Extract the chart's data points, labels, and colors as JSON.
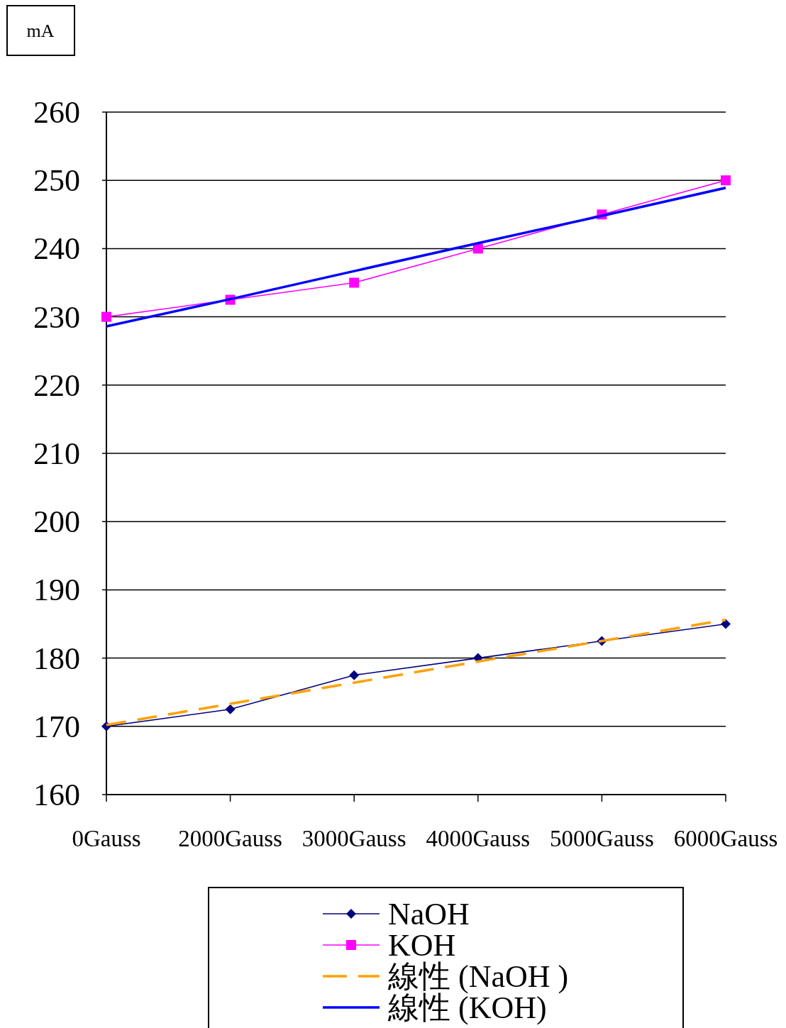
{
  "chart_data": {
    "type": "line",
    "ylabel": "mA",
    "categories": [
      "0Gauss",
      "2000Gauss",
      "3000Gauss",
      "4000Gauss",
      "5000Gauss",
      "6000Gauss"
    ],
    "series": [
      {
        "name": "NaOH",
        "color": "#000080",
        "values": [
          170,
          172.5,
          177.5,
          180,
          182.5,
          185
        ],
        "marker": "diamond",
        "line_style": "solid"
      },
      {
        "name": "KOH",
        "color": "#ff00ff",
        "values": [
          230,
          232.5,
          235,
          240,
          245,
          250
        ],
        "marker": "square",
        "line_style": "solid"
      },
      {
        "name": "線性 (NaOH )",
        "color": "#ffa000",
        "values": [
          170.2,
          173.3,
          176.4,
          179.5,
          182.5,
          185.6
        ],
        "marker": "none",
        "line_style": "dashed"
      },
      {
        "name": "線性 (KOH)",
        "color": "#0000ff",
        "values": [
          228.6,
          232.6,
          236.7,
          240.8,
          244.8,
          248.9
        ],
        "marker": "none",
        "line_style": "solid"
      }
    ],
    "ylim": [
      160,
      260
    ],
    "yticks": [
      160,
      170,
      180,
      190,
      200,
      210,
      220,
      230,
      240,
      250,
      260
    ],
    "grid": "y",
    "legend": "bottom"
  }
}
